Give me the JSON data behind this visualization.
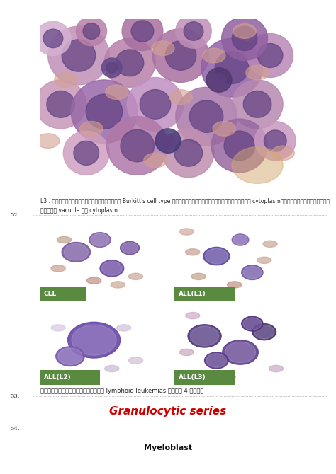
{
  "background_color": "#ffffff",
  "page_width": 4.74,
  "page_height": 6.7,
  "caption_l3": "L3 : เรียกอีกอย่างหนึ่งว่า Burkitt's cell type มีลักษณะที่เห็นได้ชัดคือ cytoplasmติดสีน้ำเงินจัด",
  "caption_l3_line2": "และมี vacuole ใน cytoplasm",
  "line52_text": "52.",
  "sub_labels": [
    "CLL",
    "ALL(L1)",
    "ALL(L2)",
    "ALL(L3)"
  ],
  "caption_compare": "เปรียบเทียบให้เห็น lymphoid leukemias ทั้ง 4 ชนิด",
  "line53_text": "53.",
  "granulocytic_title": "Granulocytic series",
  "granulocytic_color": "#cc0000",
  "line54_text": "54.",
  "myeloblast_text": "Myeloblast",
  "dotted_line_color": "#888888",
  "label_green": "#5a8a40",
  "font_size_caption": 5.5,
  "font_size_title": 11.0,
  "font_size_myeloblast": 8.0
}
